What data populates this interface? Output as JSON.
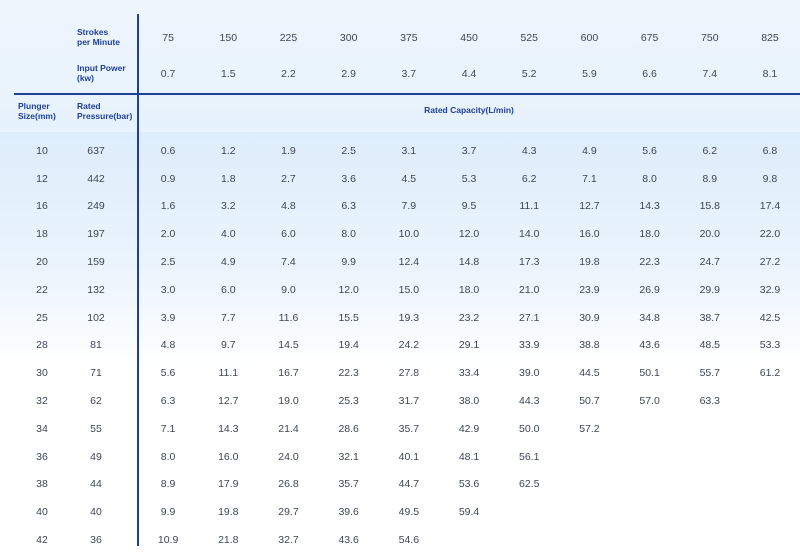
{
  "header": {
    "strokes_label": "Strokes\nper Minute",
    "power_label": "Input Power\n(kw)",
    "plunger_label": "Plunger\nSize(mm)",
    "pressure_label": "Rated\nPressure(bar)",
    "capacity_label": "Rated Capacity(L/min)",
    "strokes": [
      "75",
      "150",
      "225",
      "300",
      "375",
      "450",
      "525",
      "600",
      "675",
      "750",
      "825"
    ],
    "power": [
      "0.7",
      "1.5",
      "2.2",
      "2.9",
      "3.7",
      "4.4",
      "5.2",
      "5.9",
      "6.6",
      "7.4",
      "8.1"
    ]
  },
  "rows": [
    {
      "size": "10",
      "pressure": "637",
      "values": [
        "0.6",
        "1.2",
        "1.9",
        "2.5",
        "3.1",
        "3.7",
        "4.3",
        "4.9",
        "5.6",
        "6.2",
        "6.8"
      ]
    },
    {
      "size": "12",
      "pressure": "442",
      "values": [
        "0.9",
        "1.8",
        "2.7",
        "3.6",
        "4.5",
        "5.3",
        "6.2",
        "7.1",
        "8.0",
        "8.9",
        "9.8"
      ]
    },
    {
      "size": "16",
      "pressure": "249",
      "values": [
        "1.6",
        "3.2",
        "4.8",
        "6.3",
        "7.9",
        "9.5",
        "11.1",
        "12.7",
        "14.3",
        "15.8",
        "17.4"
      ]
    },
    {
      "size": "18",
      "pressure": "197",
      "values": [
        "2.0",
        "4.0",
        "6.0",
        "8.0",
        "10.0",
        "12.0",
        "14.0",
        "16.0",
        "18.0",
        "20.0",
        "22.0"
      ]
    },
    {
      "size": "20",
      "pressure": "159",
      "values": [
        "2.5",
        "4.9",
        "7.4",
        "9.9",
        "12.4",
        "14.8",
        "17.3",
        "19.8",
        "22.3",
        "24.7",
        "27.2"
      ]
    },
    {
      "size": "22",
      "pressure": "132",
      "values": [
        "3.0",
        "6.0",
        "9.0",
        "12.0",
        "15.0",
        "18.0",
        "21.0",
        "23.9",
        "26.9",
        "29.9",
        "32.9"
      ]
    },
    {
      "size": "25",
      "pressure": "102",
      "values": [
        "3.9",
        "7.7",
        "11.6",
        "15.5",
        "19.3",
        "23.2",
        "27.1",
        "30.9",
        "34.8",
        "38.7",
        "42.5"
      ]
    },
    {
      "size": "28",
      "pressure": "81",
      "values": [
        "4.8",
        "9.7",
        "14.5",
        "19.4",
        "24.2",
        "29.1",
        "33.9",
        "38.8",
        "43.6",
        "48.5",
        "53.3"
      ]
    },
    {
      "size": "30",
      "pressure": "71",
      "values": [
        "5.6",
        "11.1",
        "16.7",
        "22.3",
        "27.8",
        "33.4",
        "39.0",
        "44.5",
        "50.1",
        "55.7",
        "61.2"
      ]
    },
    {
      "size": "32",
      "pressure": "62",
      "values": [
        "6.3",
        "12.7",
        "19.0",
        "25.3",
        "31.7",
        "38.0",
        "44.3",
        "50.7",
        "57.0",
        "63.3",
        ""
      ]
    },
    {
      "size": "34",
      "pressure": "55",
      "values": [
        "7.1",
        "14.3",
        "21.4",
        "28.6",
        "35.7",
        "42.9",
        "50.0",
        "57.2",
        "",
        "",
        ""
      ]
    },
    {
      "size": "36",
      "pressure": "49",
      "values": [
        "8.0",
        "16.0",
        "24.0",
        "32.1",
        "40.1",
        "48.1",
        "56.1",
        "",
        "",
        "",
        ""
      ]
    },
    {
      "size": "38",
      "pressure": "44",
      "values": [
        "8.9",
        "17.9",
        "26.8",
        "35.7",
        "44.7",
        "53.6",
        "62.5",
        "",
        "",
        "",
        ""
      ]
    },
    {
      "size": "40",
      "pressure": "40",
      "values": [
        "9.9",
        "19.8",
        "29.7",
        "39.6",
        "49.5",
        "59.4",
        "",
        "",
        "",
        "",
        ""
      ]
    },
    {
      "size": "42",
      "pressure": "36",
      "values": [
        "10.9",
        "21.8",
        "32.7",
        "43.6",
        "54.6",
        "",
        "",
        "",
        "",
        "",
        ""
      ]
    }
  ]
}
